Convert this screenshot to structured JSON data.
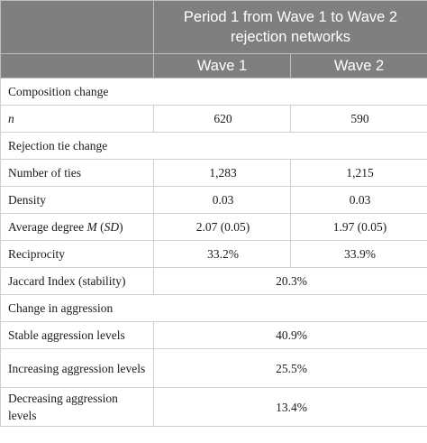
{
  "header": {
    "title": "Period 1 from Wave 1 to Wave 2 rejection networks",
    "col1": "Wave 1",
    "col2": "Wave 2"
  },
  "sections": {
    "composition": "Composition change",
    "rejection": "Rejection tie change",
    "aggression": "Change in aggression"
  },
  "rows": {
    "n": {
      "label": "n",
      "w1": "620",
      "w2": "590"
    },
    "ties": {
      "label": "Number of ties",
      "w1": "1,283",
      "w2": "1,215"
    },
    "density": {
      "label": "Density",
      "w1": "0.03",
      "w2": "0.03"
    },
    "avgdeg": {
      "label_pre": "Average degree ",
      "label_m": "M",
      "label_mid": " (",
      "label_sd": "SD",
      "label_post": ")",
      "w1": "2.07 (0.05)",
      "w2": "1.97 (0.05)"
    },
    "recip": {
      "label": "Reciprocity",
      "w1": "33.2%",
      "w2": "33.9%"
    },
    "jaccard": {
      "label": "Jaccard Index (stability)",
      "value": "20.3%"
    },
    "stable": {
      "label": "Stable aggression levels",
      "value": "40.9%"
    },
    "increasing": {
      "label": "Increasing aggression levels",
      "value": "25.5%"
    },
    "decreasing": {
      "label": "Decreasing aggression levels",
      "value": "13.4%"
    }
  }
}
